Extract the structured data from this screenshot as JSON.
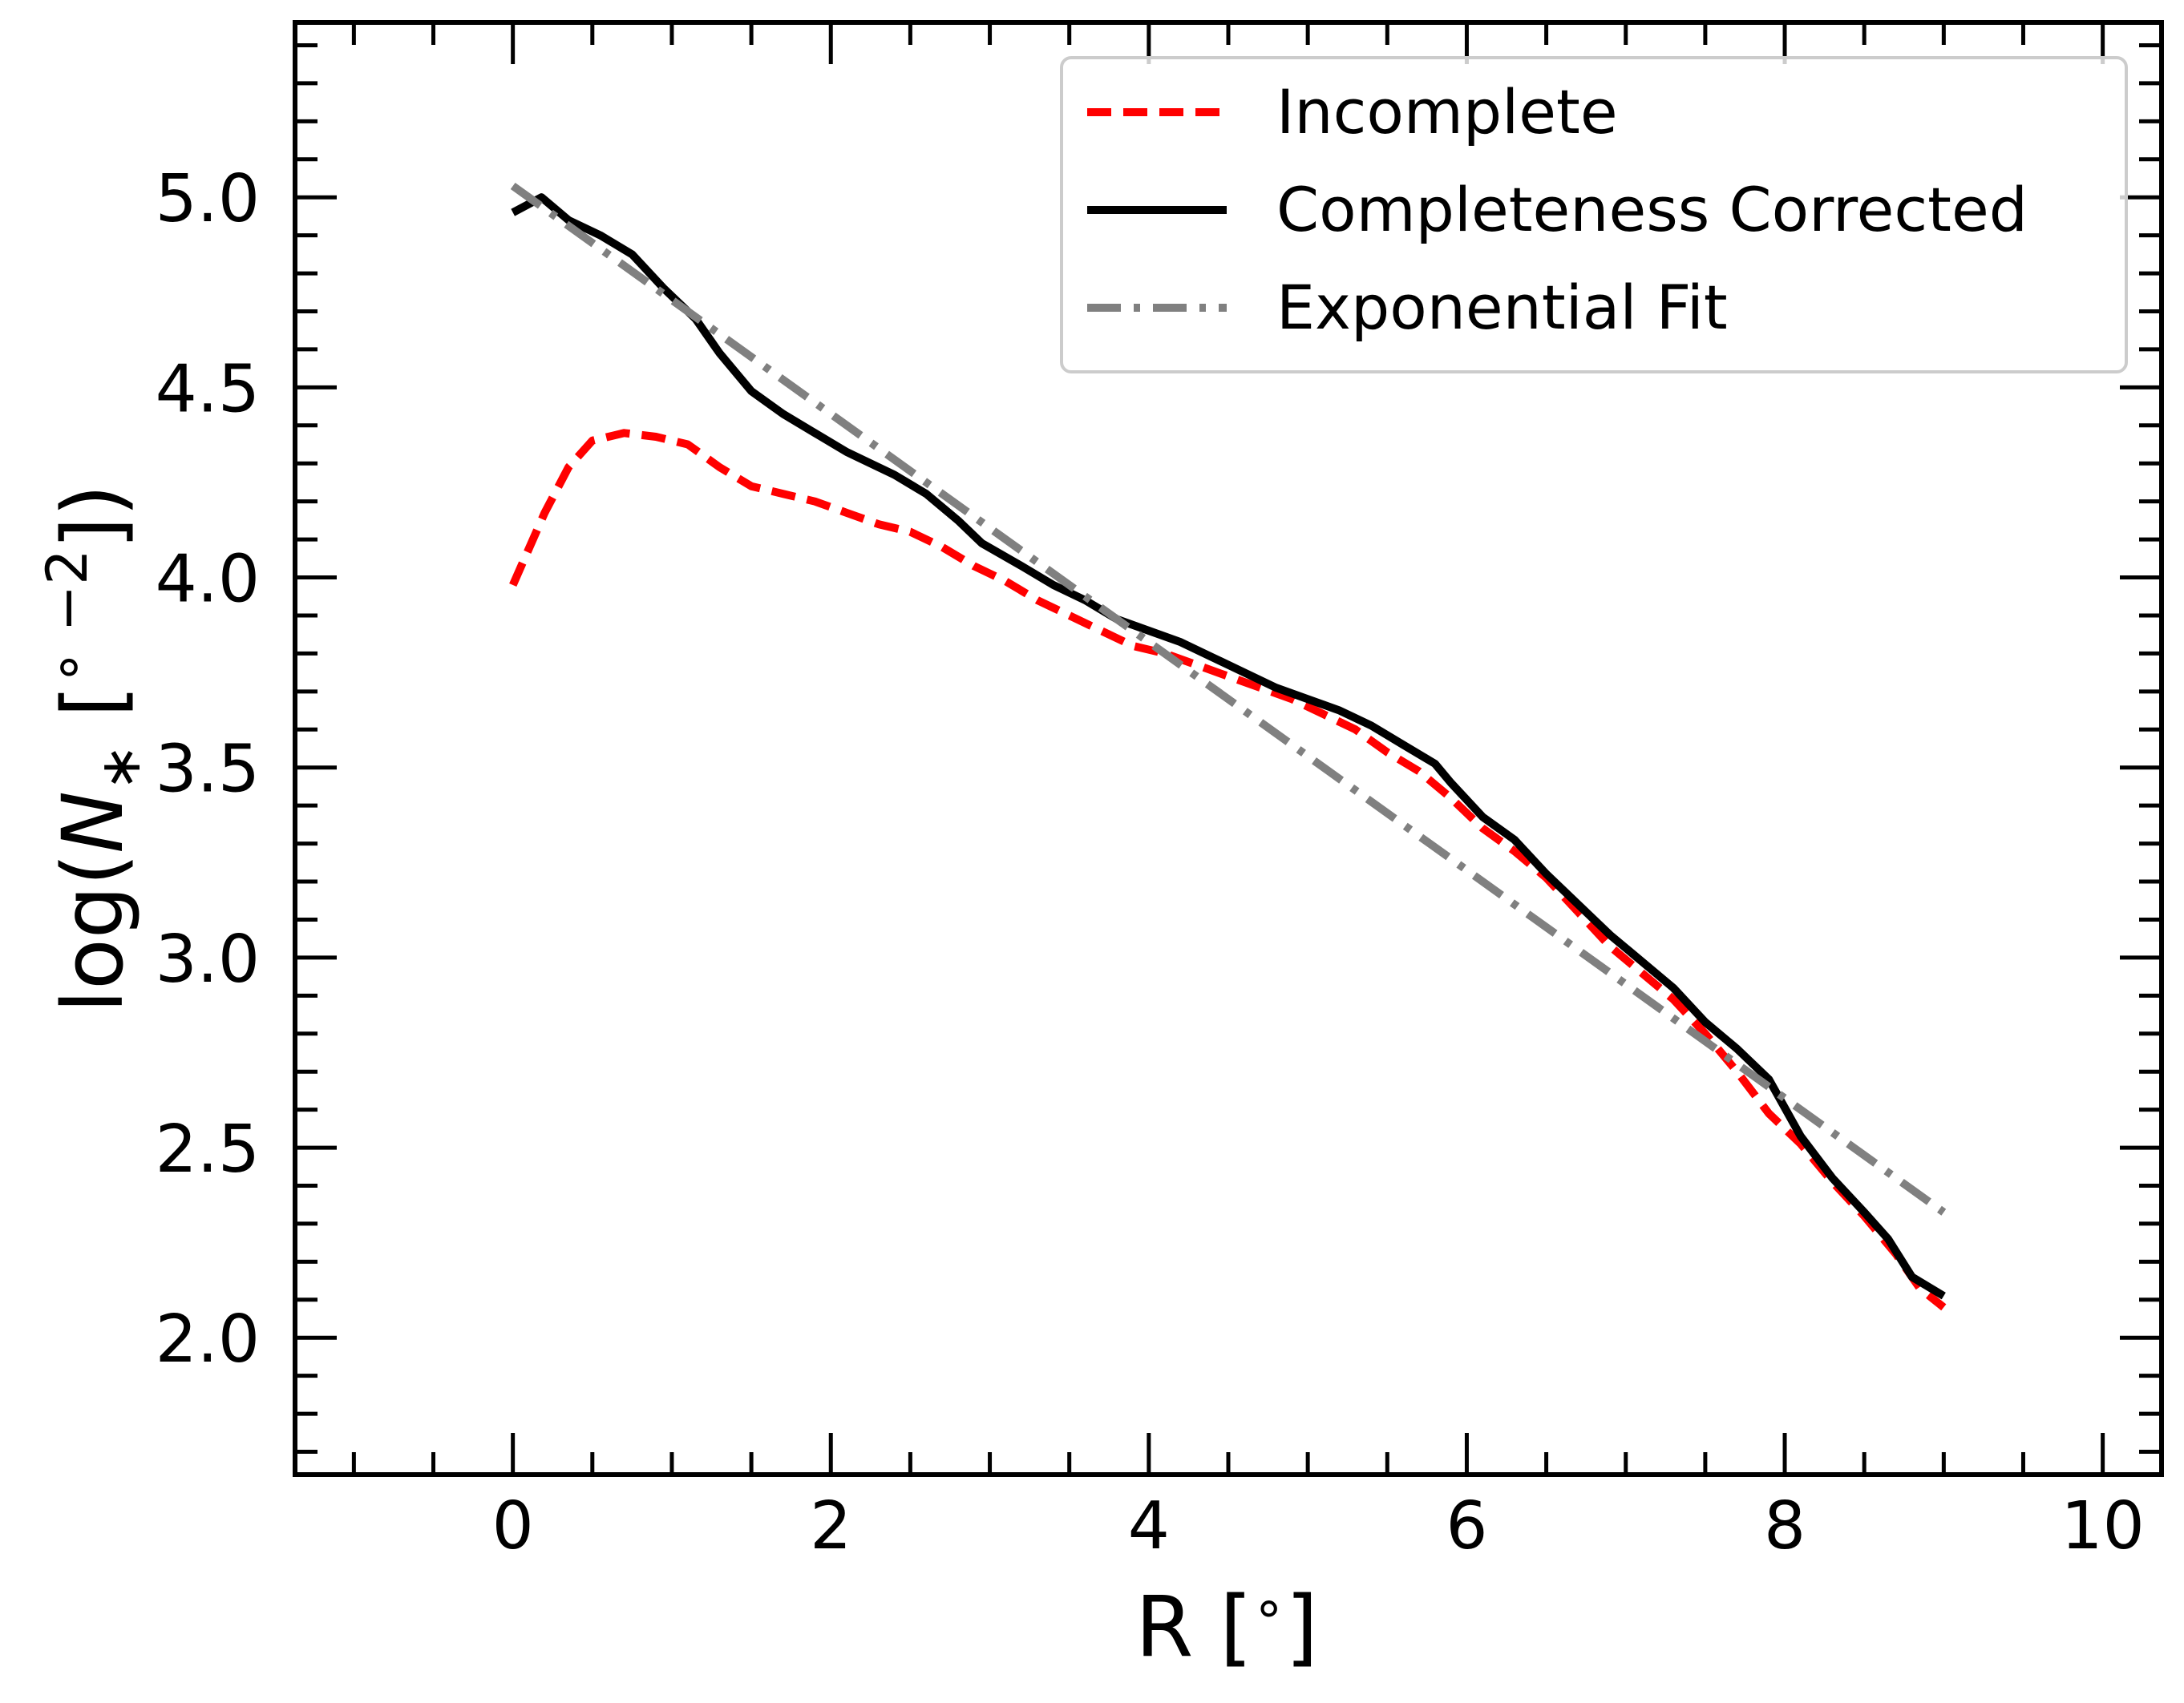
{
  "chart_data": {
    "type": "line",
    "title": "",
    "xlabel": "R [$^\\circ$]",
    "ylabel": "log($N_*$ [$^{\\circ -2}$])",
    "xlabel_parts": {
      "main": "R [",
      "sup": "∘",
      "close": "]"
    },
    "ylabel_parts": {
      "pre": "log(",
      "italic": "N",
      "sub": "∗",
      "mid": " [",
      "sup": "∘ −2",
      "close": "])"
    },
    "xlim": [
      -1.37,
      10.37
    ],
    "ylim": [
      1.64,
      5.46
    ],
    "x_ticks": [
      0,
      2,
      4,
      6,
      8,
      10
    ],
    "x_tick_labels": [
      "0",
      "2",
      "4",
      "6",
      "8",
      "10"
    ],
    "y_ticks": [
      2.0,
      2.5,
      3.0,
      3.5,
      4.0,
      4.5,
      5.0
    ],
    "y_tick_labels": [
      "2.0",
      "2.5",
      "3.0",
      "3.5",
      "4.0",
      "4.5",
      "5.0"
    ],
    "x_minor_step": 0.5,
    "y_minor_step": 0.1,
    "grid": false,
    "legend_position": "top-right",
    "series": [
      {
        "name": "Incomplete",
        "color": "#ff0000",
        "style": "dashed",
        "x": [
          0.0,
          0.2,
          0.35,
          0.5,
          0.7,
          0.9,
          1.1,
          1.3,
          1.5,
          1.7,
          1.9,
          2.1,
          2.3,
          2.5,
          2.7,
          2.9,
          3.1,
          3.3,
          3.5,
          3.7,
          3.9,
          4.1,
          4.3,
          4.5,
          4.7,
          4.9,
          5.1,
          5.3,
          5.5,
          5.7,
          5.9,
          6.1,
          6.3,
          6.5,
          6.7,
          6.9,
          7.1,
          7.3,
          7.5,
          7.7,
          7.9,
          8.1,
          8.3,
          8.5,
          8.7,
          8.85,
          9.0
        ],
        "y": [
          3.98,
          4.17,
          4.29,
          4.36,
          4.38,
          4.37,
          4.35,
          4.29,
          4.24,
          4.22,
          4.2,
          4.17,
          4.14,
          4.12,
          4.08,
          4.03,
          3.99,
          3.94,
          3.9,
          3.86,
          3.82,
          3.8,
          3.77,
          3.74,
          3.71,
          3.68,
          3.64,
          3.6,
          3.54,
          3.49,
          3.42,
          3.34,
          3.28,
          3.21,
          3.12,
          3.03,
          2.96,
          2.89,
          2.8,
          2.7,
          2.59,
          2.51,
          2.41,
          2.32,
          2.22,
          2.13,
          2.08
        ],
        "values": [
          3.98,
          4.17,
          4.29,
          4.36,
          4.38,
          4.37,
          4.35,
          4.29,
          4.24,
          4.22,
          4.2,
          4.17,
          4.14,
          4.12,
          4.08,
          4.03,
          3.99,
          3.94,
          3.9,
          3.86,
          3.82,
          3.8,
          3.77,
          3.74,
          3.71,
          3.68,
          3.64,
          3.6,
          3.54,
          3.49,
          3.42,
          3.34,
          3.28,
          3.21,
          3.12,
          3.03,
          2.96,
          2.89,
          2.8,
          2.7,
          2.59,
          2.51,
          2.41,
          2.32,
          2.22,
          2.13,
          2.08
        ]
      },
      {
        "name": "Completeness Corrected",
        "color": "#000000",
        "style": "solid",
        "x": [
          0.0,
          0.18,
          0.35,
          0.55,
          0.75,
          0.95,
          1.15,
          1.3,
          1.5,
          1.7,
          1.9,
          2.1,
          2.2,
          2.4,
          2.6,
          2.8,
          2.95,
          3.2,
          3.4,
          3.6,
          3.8,
          4.0,
          4.2,
          4.4,
          4.6,
          4.8,
          5.0,
          5.2,
          5.4,
          5.6,
          5.8,
          5.9,
          6.1,
          6.3,
          6.5,
          6.7,
          6.9,
          7.1,
          7.3,
          7.5,
          7.7,
          7.9,
          8.1,
          8.3,
          8.5,
          8.65,
          8.8,
          9.0
        ],
        "y": [
          4.96,
          5.0,
          4.94,
          4.9,
          4.85,
          4.76,
          4.68,
          4.59,
          4.49,
          4.43,
          4.38,
          4.33,
          4.31,
          4.27,
          4.22,
          4.15,
          4.09,
          4.03,
          3.98,
          3.94,
          3.89,
          3.86,
          3.83,
          3.79,
          3.75,
          3.71,
          3.68,
          3.65,
          3.61,
          3.56,
          3.51,
          3.46,
          3.37,
          3.31,
          3.22,
          3.14,
          3.06,
          2.99,
          2.92,
          2.83,
          2.76,
          2.68,
          2.53,
          2.42,
          2.33,
          2.26,
          2.16,
          2.11
        ],
        "values": [
          4.96,
          5.0,
          4.94,
          4.9,
          4.85,
          4.76,
          4.68,
          4.59,
          4.49,
          4.43,
          4.38,
          4.33,
          4.31,
          4.27,
          4.22,
          4.15,
          4.09,
          4.03,
          3.98,
          3.94,
          3.89,
          3.86,
          3.83,
          3.79,
          3.75,
          3.71,
          3.68,
          3.65,
          3.61,
          3.56,
          3.51,
          3.46,
          3.37,
          3.31,
          3.22,
          3.14,
          3.06,
          2.99,
          2.92,
          2.83,
          2.76,
          2.68,
          2.53,
          2.42,
          2.33,
          2.26,
          2.16,
          2.11
        ]
      },
      {
        "name": "Exponential Fit",
        "color": "#808080",
        "style": "dashdot",
        "x": [
          0.0,
          9.0
        ],
        "y": [
          5.03,
          2.33
        ],
        "values": [
          5.03,
          2.33
        ]
      }
    ]
  }
}
